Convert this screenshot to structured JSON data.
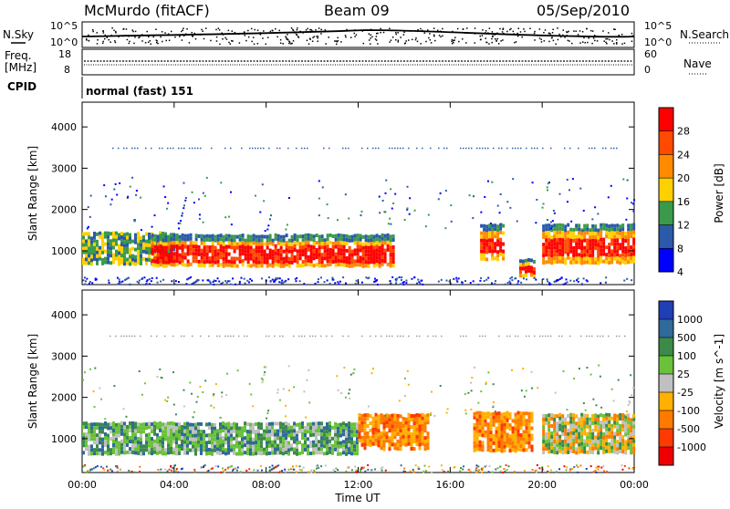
{
  "header": {
    "station": "McMurdo (fitACF)",
    "beam": "Beam 09",
    "date": "05/Sep/2010"
  },
  "top_panel": {
    "left_label": "N.Sky",
    "left_ticks": [
      "10^5",
      "10^0"
    ],
    "right_label": "N.Search",
    "right_ticks": [
      "10^5",
      "10^0"
    ]
  },
  "freq_panel": {
    "left_label_1": "Freq.",
    "left_label_2": "[MHz]",
    "left_ticks": [
      "18",
      "8"
    ],
    "right_label": "Nave",
    "right_ticks": [
      "60",
      "0"
    ]
  },
  "cpid": {
    "label": "CPID",
    "value": "normal (fast) 151"
  },
  "chart_data": [
    {
      "type": "heatmap",
      "name": "Power",
      "ylabel": "Slant Range [km]",
      "xlabel": "",
      "ylim": [
        180,
        4600
      ],
      "yticks": [
        1000,
        2000,
        3000,
        4000
      ],
      "xticks": [
        "00:00",
        "04:00",
        "08:00",
        "12:00",
        "16:00",
        "20:00",
        "00:00"
      ],
      "colorbar": {
        "label": "Power [dB]",
        "ticks": [
          "28",
          "24",
          "20",
          "16",
          "12",
          "8",
          "4"
        ],
        "colors": [
          "#ff0000",
          "#ff4a00",
          "#ff8a00",
          "#ffd000",
          "#3a9a4a",
          "#2a5aa8",
          "#0000ff"
        ]
      },
      "echo_regions": [
        {
          "t_start": 0.0,
          "t_end": 4.0,
          "r_low": 650,
          "r_high": 1450,
          "class": "mixed"
        },
        {
          "t_start": 3.0,
          "t_end": 13.5,
          "r_low": 600,
          "r_high": 1400,
          "class": "strong"
        },
        {
          "t_start": 17.3,
          "t_end": 18.3,
          "r_low": 800,
          "r_high": 1650,
          "class": "strong"
        },
        {
          "t_start": 19.0,
          "t_end": 19.7,
          "r_low": 380,
          "r_high": 800,
          "class": "strong"
        },
        {
          "t_start": 20.0,
          "t_end": 24.0,
          "r_low": 700,
          "r_high": 1650,
          "class": "strong"
        }
      ]
    },
    {
      "type": "heatmap",
      "name": "Velocity",
      "ylabel": "Slant Range [km]",
      "xlabel": "Time UT",
      "ylim": [
        180,
        4600
      ],
      "yticks": [
        1000,
        2000,
        3000,
        4000
      ],
      "xticks": [
        "00:00",
        "04:00",
        "08:00",
        "12:00",
        "16:00",
        "20:00",
        "00:00"
      ],
      "colorbar": {
        "label": "Velocity [m s^-1]",
        "ticks": [
          "1000",
          "500",
          "100",
          "25",
          "-25",
          "-100",
          "-500",
          "-1000"
        ],
        "colors": [
          "#1f3fb5",
          "#2f6a9a",
          "#3c8a4a",
          "#6ac23a",
          "#c0c0c0",
          "#ffb000",
          "#ff7a00",
          "#ff3a00",
          "#ee0000"
        ]
      },
      "echo_regions": [
        {
          "t_start": 0.0,
          "t_end": 12.0,
          "r_low": 600,
          "r_high": 1400,
          "class": "towards"
        },
        {
          "t_start": 12.0,
          "t_end": 15.0,
          "r_low": 750,
          "r_high": 1600,
          "class": "away"
        },
        {
          "t_start": 17.0,
          "t_end": 19.5,
          "r_low": 700,
          "r_high": 1650,
          "class": "away"
        },
        {
          "t_start": 20.0,
          "t_end": 24.0,
          "r_low": 600,
          "r_high": 1600,
          "class": "mixed"
        }
      ]
    }
  ]
}
